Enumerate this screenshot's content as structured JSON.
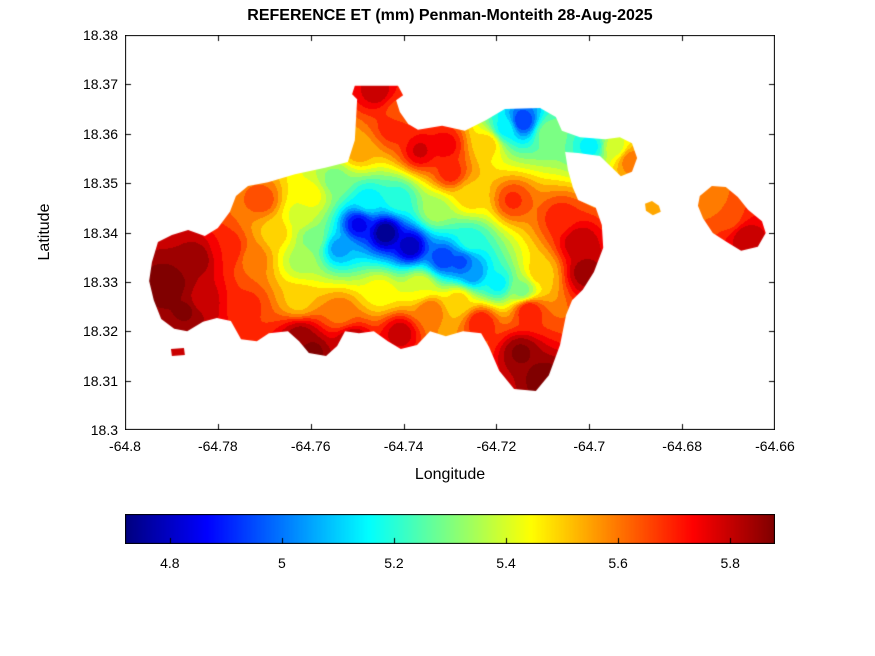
{
  "chart_data": {
    "type": "heatmap",
    "subtype": "filled_contour_map",
    "title": "REFERENCE ET (mm) Penman-Monteith 28-Aug-2025",
    "xlabel": "Longitude",
    "ylabel": "Latitude",
    "xlim": [
      -64.8,
      -64.66
    ],
    "ylim": [
      18.3,
      18.38
    ],
    "xticks": [
      -64.8,
      -64.78,
      -64.76,
      -64.74,
      -64.72,
      -64.7,
      -64.68,
      -64.66
    ],
    "xtick_labels": [
      "-64.8",
      "-64.78",
      "-64.76",
      "-64.74",
      "-64.72",
      "-64.7",
      "-64.68",
      "-64.66"
    ],
    "yticks": [
      18.38,
      18.37,
      18.36,
      18.35,
      18.34,
      18.33,
      18.32,
      18.31,
      18.3
    ],
    "ytick_labels": [
      "18.38",
      "18.37",
      "18.36",
      "18.35",
      "18.34",
      "18.33",
      "18.32",
      "18.31",
      "18.3"
    ],
    "colormap": "jet",
    "clim": [
      4.72,
      5.88
    ],
    "contour_interval": 0.05,
    "grid": false,
    "colorbar": {
      "orientation": "horizontal",
      "position": "south",
      "ticks": [
        4.8,
        5.0,
        5.2,
        5.4,
        5.6,
        5.8
      ],
      "tick_labels": [
        "4.8",
        "5",
        "5.2",
        "5.4",
        "5.6",
        "5.8"
      ]
    },
    "boundaries": [
      [
        [
          -64.7942,
          18.334
        ],
        [
          -64.7929,
          18.3381
        ],
        [
          -64.7899,
          18.3395
        ],
        [
          -64.7864,
          18.3405
        ],
        [
          -64.7828,
          18.3393
        ],
        [
          -64.78,
          18.3409
        ],
        [
          -64.7774,
          18.3442
        ],
        [
          -64.7761,
          18.3474
        ],
        [
          -64.7735,
          18.3494
        ],
        [
          -64.7692,
          18.3502
        ],
        [
          -64.7634,
          18.3518
        ],
        [
          -64.7569,
          18.3531
        ],
        [
          -64.752,
          18.3543
        ],
        [
          -64.7505,
          18.3587
        ],
        [
          -64.75,
          18.367
        ],
        [
          -64.7511,
          18.368
        ],
        [
          -64.7505,
          18.3697
        ],
        [
          -64.7412,
          18.3697
        ],
        [
          -64.7401,
          18.3678
        ],
        [
          -64.7416,
          18.3668
        ],
        [
          -64.7408,
          18.3644
        ],
        [
          -64.739,
          18.362
        ],
        [
          -64.7369,
          18.3608
        ],
        [
          -64.7317,
          18.3616
        ],
        [
          -64.7268,
          18.3606
        ],
        [
          -64.7222,
          18.3628
        ],
        [
          -64.7182,
          18.365
        ],
        [
          -64.7106,
          18.3652
        ],
        [
          -64.7072,
          18.3634
        ],
        [
          -64.7059,
          18.3606
        ],
        [
          -64.702,
          18.3593
        ],
        [
          -64.6966,
          18.3589
        ],
        [
          -64.6934,
          18.3593
        ],
        [
          -64.6908,
          18.3581
        ],
        [
          -64.6897,
          18.3551
        ],
        [
          -64.6908,
          18.3523
        ],
        [
          -64.6932,
          18.3514
        ],
        [
          -64.6951,
          18.3531
        ],
        [
          -64.6977,
          18.3555
        ],
        [
          -64.7024,
          18.3561
        ],
        [
          -64.7052,
          18.3563
        ],
        [
          -64.7046,
          18.3527
        ],
        [
          -64.7035,
          18.349
        ],
        [
          -64.7024,
          18.3466
        ],
        [
          -64.6986,
          18.345
        ],
        [
          -64.6973,
          18.3415
        ],
        [
          -64.697,
          18.3369
        ],
        [
          -64.699,
          18.332
        ],
        [
          -64.7014,
          18.3284
        ],
        [
          -64.7037,
          18.3263
        ],
        [
          -64.705,
          18.3233
        ],
        [
          -64.7063,
          18.3172
        ],
        [
          -64.7087,
          18.3111
        ],
        [
          -64.7115,
          18.3079
        ],
        [
          -64.7162,
          18.3083
        ],
        [
          -64.7194,
          18.312
        ],
        [
          -64.7216,
          18.3168
        ],
        [
          -64.7233,
          18.3196
        ],
        [
          -64.7272,
          18.32
        ],
        [
          -64.7309,
          18.319
        ],
        [
          -64.7343,
          18.32
        ],
        [
          -64.7371,
          18.3172
        ],
        [
          -64.7406,
          18.3164
        ],
        [
          -64.7434,
          18.318
        ],
        [
          -64.7464,
          18.32
        ],
        [
          -64.7496,
          18.3196
        ],
        [
          -64.7526,
          18.32
        ],
        [
          -64.7543,
          18.317
        ],
        [
          -64.7567,
          18.315
        ],
        [
          -64.7604,
          18.3156
        ],
        [
          -64.7625,
          18.318
        ],
        [
          -64.7649,
          18.32
        ],
        [
          -64.769,
          18.3196
        ],
        [
          -64.7716,
          18.318
        ],
        [
          -64.775,
          18.3184
        ],
        [
          -64.7772,
          18.3221
        ],
        [
          -64.7802,
          18.3227
        ],
        [
          -64.7832,
          18.3219
        ],
        [
          -64.7866,
          18.32
        ],
        [
          -64.7894,
          18.3205
        ],
        [
          -64.7922,
          18.3225
        ],
        [
          -64.7938,
          18.3263
        ],
        [
          -64.7948,
          18.3302
        ]
      ],
      [
        [
          -64.7901,
          18.3164
        ],
        [
          -64.7873,
          18.3166
        ],
        [
          -64.7871,
          18.3152
        ],
        [
          -64.7899,
          18.315
        ]
      ],
      [
        [
          -64.688,
          18.3458
        ],
        [
          -64.6865,
          18.3464
        ],
        [
          -64.685,
          18.3454
        ],
        [
          -64.6846,
          18.3442
        ],
        [
          -64.6863,
          18.3435
        ],
        [
          -64.6878,
          18.3444
        ]
      ],
      [
        [
          -64.6762,
          18.3474
        ],
        [
          -64.6736,
          18.3494
        ],
        [
          -64.6706,
          18.3492
        ],
        [
          -64.668,
          18.3472
        ],
        [
          -64.6658,
          18.3446
        ],
        [
          -64.6628,
          18.3423
        ],
        [
          -64.662,
          18.3399
        ],
        [
          -64.6637,
          18.3371
        ],
        [
          -64.6673,
          18.3363
        ],
        [
          -64.6704,
          18.3381
        ],
        [
          -64.6734,
          18.3399
        ],
        [
          -64.6755,
          18.3429
        ],
        [
          -64.6766,
          18.3454
        ]
      ]
    ],
    "points": [
      [
        -64.744,
        18.3401,
        4.72
      ],
      [
        -64.7386,
        18.3373,
        4.78
      ],
      [
        -64.7498,
        18.3417,
        4.85
      ],
      [
        -64.7315,
        18.3348,
        4.92
      ],
      [
        -64.7253,
        18.332,
        5.02
      ],
      [
        -64.7197,
        18.3298,
        5.15
      ],
      [
        -64.7541,
        18.3369,
        5.05
      ],
      [
        -64.7597,
        18.3389,
        5.3
      ],
      [
        -64.7412,
        18.347,
        5.2
      ],
      [
        -64.7477,
        18.3466,
        5.15
      ],
      [
        -64.7623,
        18.3435,
        5.4
      ],
      [
        -64.7677,
        18.3401,
        5.5
      ],
      [
        -64.7726,
        18.3348,
        5.6
      ],
      [
        -64.7778,
        18.3365,
        5.72
      ],
      [
        -64.7847,
        18.3348,
        5.85
      ],
      [
        -64.7907,
        18.3294,
        5.92
      ],
      [
        -64.7838,
        18.3263,
        5.8
      ],
      [
        -64.7735,
        18.3255,
        5.68
      ],
      [
        -64.7627,
        18.3263,
        5.5
      ],
      [
        -64.7623,
        18.319,
        5.85
      ],
      [
        -64.7537,
        18.3239,
        5.6
      ],
      [
        -64.7511,
        18.3178,
        5.85
      ],
      [
        -64.7408,
        18.3198,
        5.8
      ],
      [
        -64.7343,
        18.3243,
        5.62
      ],
      [
        -64.7365,
        18.3292,
        5.42
      ],
      [
        -64.7283,
        18.3263,
        5.5
      ],
      [
        -64.7235,
        18.3219,
        5.72
      ],
      [
        -64.7149,
        18.3158,
        5.88
      ],
      [
        -64.71,
        18.3105,
        5.9
      ],
      [
        -64.7132,
        18.3243,
        5.72
      ],
      [
        -64.7106,
        18.332,
        5.5
      ],
      [
        -64.7145,
        18.3284,
        5.3
      ],
      [
        -64.7024,
        18.3381,
        5.82
      ],
      [
        -64.7009,
        18.332,
        5.85
      ],
      [
        -64.7063,
        18.3429,
        5.7
      ],
      [
        -64.7166,
        18.3466,
        5.68
      ],
      [
        -64.7257,
        18.3474,
        5.5
      ],
      [
        -64.73,
        18.3523,
        5.7
      ],
      [
        -64.7365,
        18.3567,
        5.78
      ],
      [
        -64.7425,
        18.3612,
        5.7
      ],
      [
        -64.7412,
        18.3644,
        5.65
      ],
      [
        -64.7459,
        18.3687,
        5.8
      ],
      [
        -64.7498,
        18.3567,
        5.55
      ],
      [
        -64.7548,
        18.3506,
        5.3
      ],
      [
        -64.7145,
        18.3626,
        4.92
      ],
      [
        -64.7182,
        18.3612,
        5.15
      ],
      [
        -64.7089,
        18.3602,
        5.3
      ],
      [
        -64.722,
        18.3581,
        5.5
      ],
      [
        -64.6998,
        18.3575,
        5.15
      ],
      [
        -64.6945,
        18.3573,
        5.4
      ],
      [
        -64.6912,
        18.3547,
        5.6
      ],
      [
        -64.6863,
        18.345,
        5.55
      ],
      [
        -64.6736,
        18.3462,
        5.6
      ],
      [
        -64.6697,
        18.3429,
        5.65
      ],
      [
        -64.6665,
        18.3393,
        5.8
      ],
      [
        -64.7888,
        18.3158,
        5.8
      ],
      [
        -64.7602,
        18.3158,
        5.9
      ],
      [
        -64.7278,
        18.334,
        4.95
      ],
      [
        -64.7257,
        18.3385,
        5.2
      ],
      [
        -64.7332,
        18.3446,
        5.35
      ],
      [
        -64.7311,
        18.3577,
        5.75
      ],
      [
        -64.7602,
        18.3476,
        5.45
      ],
      [
        -64.7705,
        18.3466,
        5.65
      ],
      [
        -64.7871,
        18.3243,
        5.88
      ],
      [
        -64.7451,
        18.328,
        5.45
      ],
      [
        -64.7623,
        18.3344,
        5.35
      ]
    ]
  }
}
